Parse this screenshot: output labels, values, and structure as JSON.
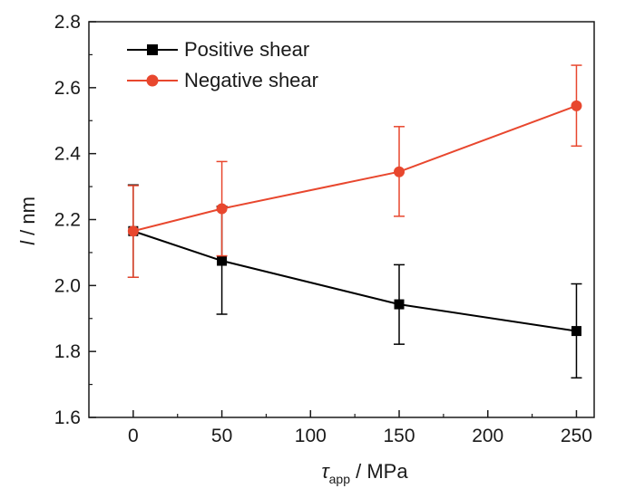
{
  "chart_data": {
    "type": "line",
    "xlabel": {
      "symbol": "τ",
      "subscript": "app",
      "unit": " / MPa"
    },
    "ylabel": {
      "symbol": "l",
      "unit": " / nm"
    },
    "xlim": [
      -25,
      260
    ],
    "ylim": [
      1.6,
      2.8
    ],
    "xticks": [
      0,
      50,
      100,
      150,
      200,
      250
    ],
    "yticks": [
      1.6,
      1.8,
      2.0,
      2.2,
      2.4,
      2.6,
      2.8
    ],
    "grid": false,
    "legend_position": "top-left",
    "series": [
      {
        "name": "Positive shear",
        "color": "#000000",
        "marker": "square",
        "x": [
          0,
          50,
          150,
          250
        ],
        "y": [
          2.165,
          2.075,
          1.943,
          1.862
        ],
        "err_low": [
          2.025,
          1.913,
          1.822,
          1.72
        ],
        "err_high": [
          2.305,
          2.24,
          2.063,
          2.005
        ]
      },
      {
        "name": "Negative shear",
        "color": "#e8472e",
        "marker": "circle",
        "x": [
          0,
          50,
          150,
          250
        ],
        "y": [
          2.165,
          2.233,
          2.345,
          2.545
        ],
        "err_low": [
          2.025,
          2.09,
          2.21,
          2.423
        ],
        "err_high": [
          2.303,
          2.376,
          2.482,
          2.668
        ]
      }
    ]
  }
}
